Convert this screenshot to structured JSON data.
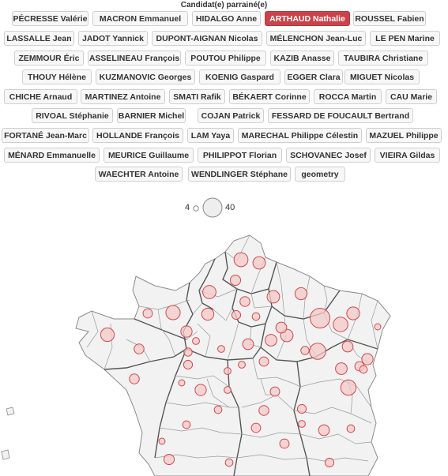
{
  "title": "Candidat(e) parrainé(e)",
  "selected_candidate": "ARTHAUD Nathalie",
  "candidates": [
    "PÉCRESSE Valérie",
    "MACRON Emmanuel",
    "HIDALGO Anne",
    "ARTHAUD Nathalie",
    "ROUSSEL Fabien",
    "LASSALLE Jean",
    "JADOT Yannick",
    "DUPONT-AIGNAN Nicolas",
    "MÉLENCHON Jean-Luc",
    "LE PEN Marine",
    "ZEMMOUR Éric",
    "ASSELINEAU François",
    "POUTOU Philippe",
    "KAZIB Anasse",
    "TAUBIRA Christiane",
    "THOUY Hélène",
    "KUZMANOVIC Georges",
    "KOENIG Gaspard",
    "EGGER Clara",
    "MIGUET Nicolas",
    "CHICHE Arnaud",
    "MARTINEZ Antoine",
    "SMATI Rafik",
    "BÉKAERT Corinne",
    "ROCCA Martin",
    "CAU Marie",
    "RIVOAL Stéphanie",
    "BARNIER Michel",
    "COJAN Patrick",
    "FESSARD DE FOUCAULT Bertrand",
    "FORTANÉ Jean-Marc",
    "HOLLANDE François",
    "LAM Yaya",
    "MARECHAL Philippe Célestin",
    "MAZUEL Philippe",
    "MÉNARD Emmanuelle",
    "MEURICE Guillaume",
    "PHILIPPOT Florian",
    "SCHOVANEC Josef",
    "VIEIRA Gildas",
    "WAECHTER Antoine",
    "WENDLINGER Stéphane",
    "geometry"
  ],
  "legend": {
    "min_label": "4",
    "max_label": "40",
    "min_value": 4,
    "max_value": 40
  },
  "colors": {
    "accent": "#c9444a",
    "bubble_fill": "#f4c8c8",
    "bubble_stroke": "#cc4b4b",
    "land": "#f2f2f2",
    "borders": "#8a8a8a"
  },
  "bubble_values": [
    20,
    16,
    11,
    10,
    18,
    21,
    13,
    15,
    9,
    16,
    15,
    6,
    8,
    16,
    40,
    22,
    17,
    4,
    7,
    27,
    24,
    12,
    14,
    9,
    19,
    10,
    5,
    7,
    8,
    5,
    12,
    5,
    9,
    14,
    12,
    5,
    5,
    9,
    8,
    12,
    5,
    4,
    6,
    6,
    10,
    6,
    6,
    13,
    6,
    11,
    8,
    9,
    13,
    10,
    4,
    9
  ]
}
